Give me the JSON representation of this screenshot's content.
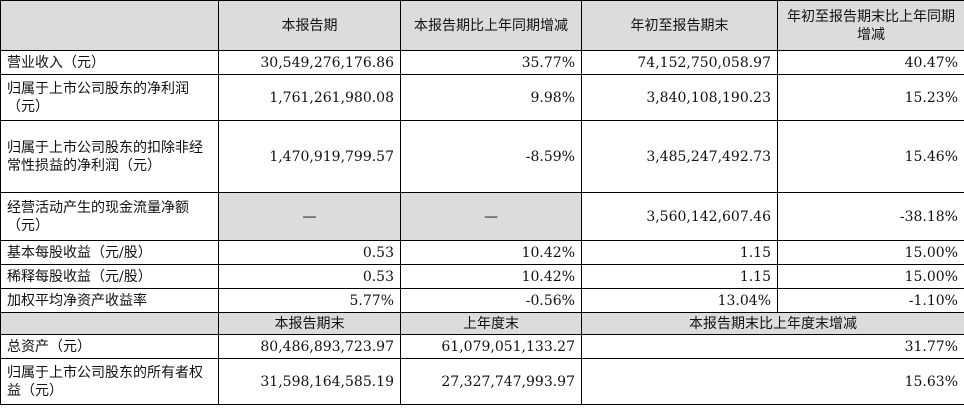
{
  "header": {
    "col1": "本报告期",
    "col2": "本报告期比上年同期增减",
    "col3": "年初至报告期末",
    "col4": "年初至报告期末比上年同期增减"
  },
  "rows": [
    {
      "label": "营业收入（元）",
      "v1": "30,549,276,176.86",
      "v2": "35.77%",
      "v3": "74,152,750,058.97",
      "v4": "40.47%"
    },
    {
      "label": "归属于上市公司股东的净利润（元）",
      "v1": "1,761,261,980.08",
      "v2": "9.98%",
      "v3": "3,840,108,190.23",
      "v4": "15.23%"
    },
    {
      "label": "归属于上市公司股东的扣除非经常性损益的净利润（元）",
      "v1": "1,470,919,799.57",
      "v2": "-8.59%",
      "v3": "3,485,247,492.73",
      "v4": "15.46%"
    },
    {
      "label": "经营活动产生的现金流量净额（元）",
      "v1": "—",
      "v2": "—",
      "v3": "3,560,142,607.46",
      "v4": "-38.18%"
    },
    {
      "label": "基本每股收益（元/股）",
      "v1": "0.53",
      "v2": "10.42%",
      "v3": "1.15",
      "v4": "15.00%"
    },
    {
      "label": "稀释每股收益（元/股）",
      "v1": "0.53",
      "v2": "10.42%",
      "v3": "1.15",
      "v4": "15.00%"
    },
    {
      "label": "加权平均净资产收益率",
      "v1": "5.77%",
      "v2": "-0.56%",
      "v3": "13.04%",
      "v4": "-1.10%"
    }
  ],
  "header2": {
    "col1": "本报告期末",
    "col2": "上年度末",
    "col3": "本报告期末比上年度末增减"
  },
  "rows2": [
    {
      "label": "总资产（元）",
      "v1": "80,486,893,723.97",
      "v2": "61,079,051,133.27",
      "v3": "31.77%"
    },
    {
      "label": "归属于上市公司股东的所有者权益（元）",
      "v1": "31,598,164,585.19",
      "v2": "27,327,747,993.97",
      "v3": "15.63%"
    }
  ]
}
